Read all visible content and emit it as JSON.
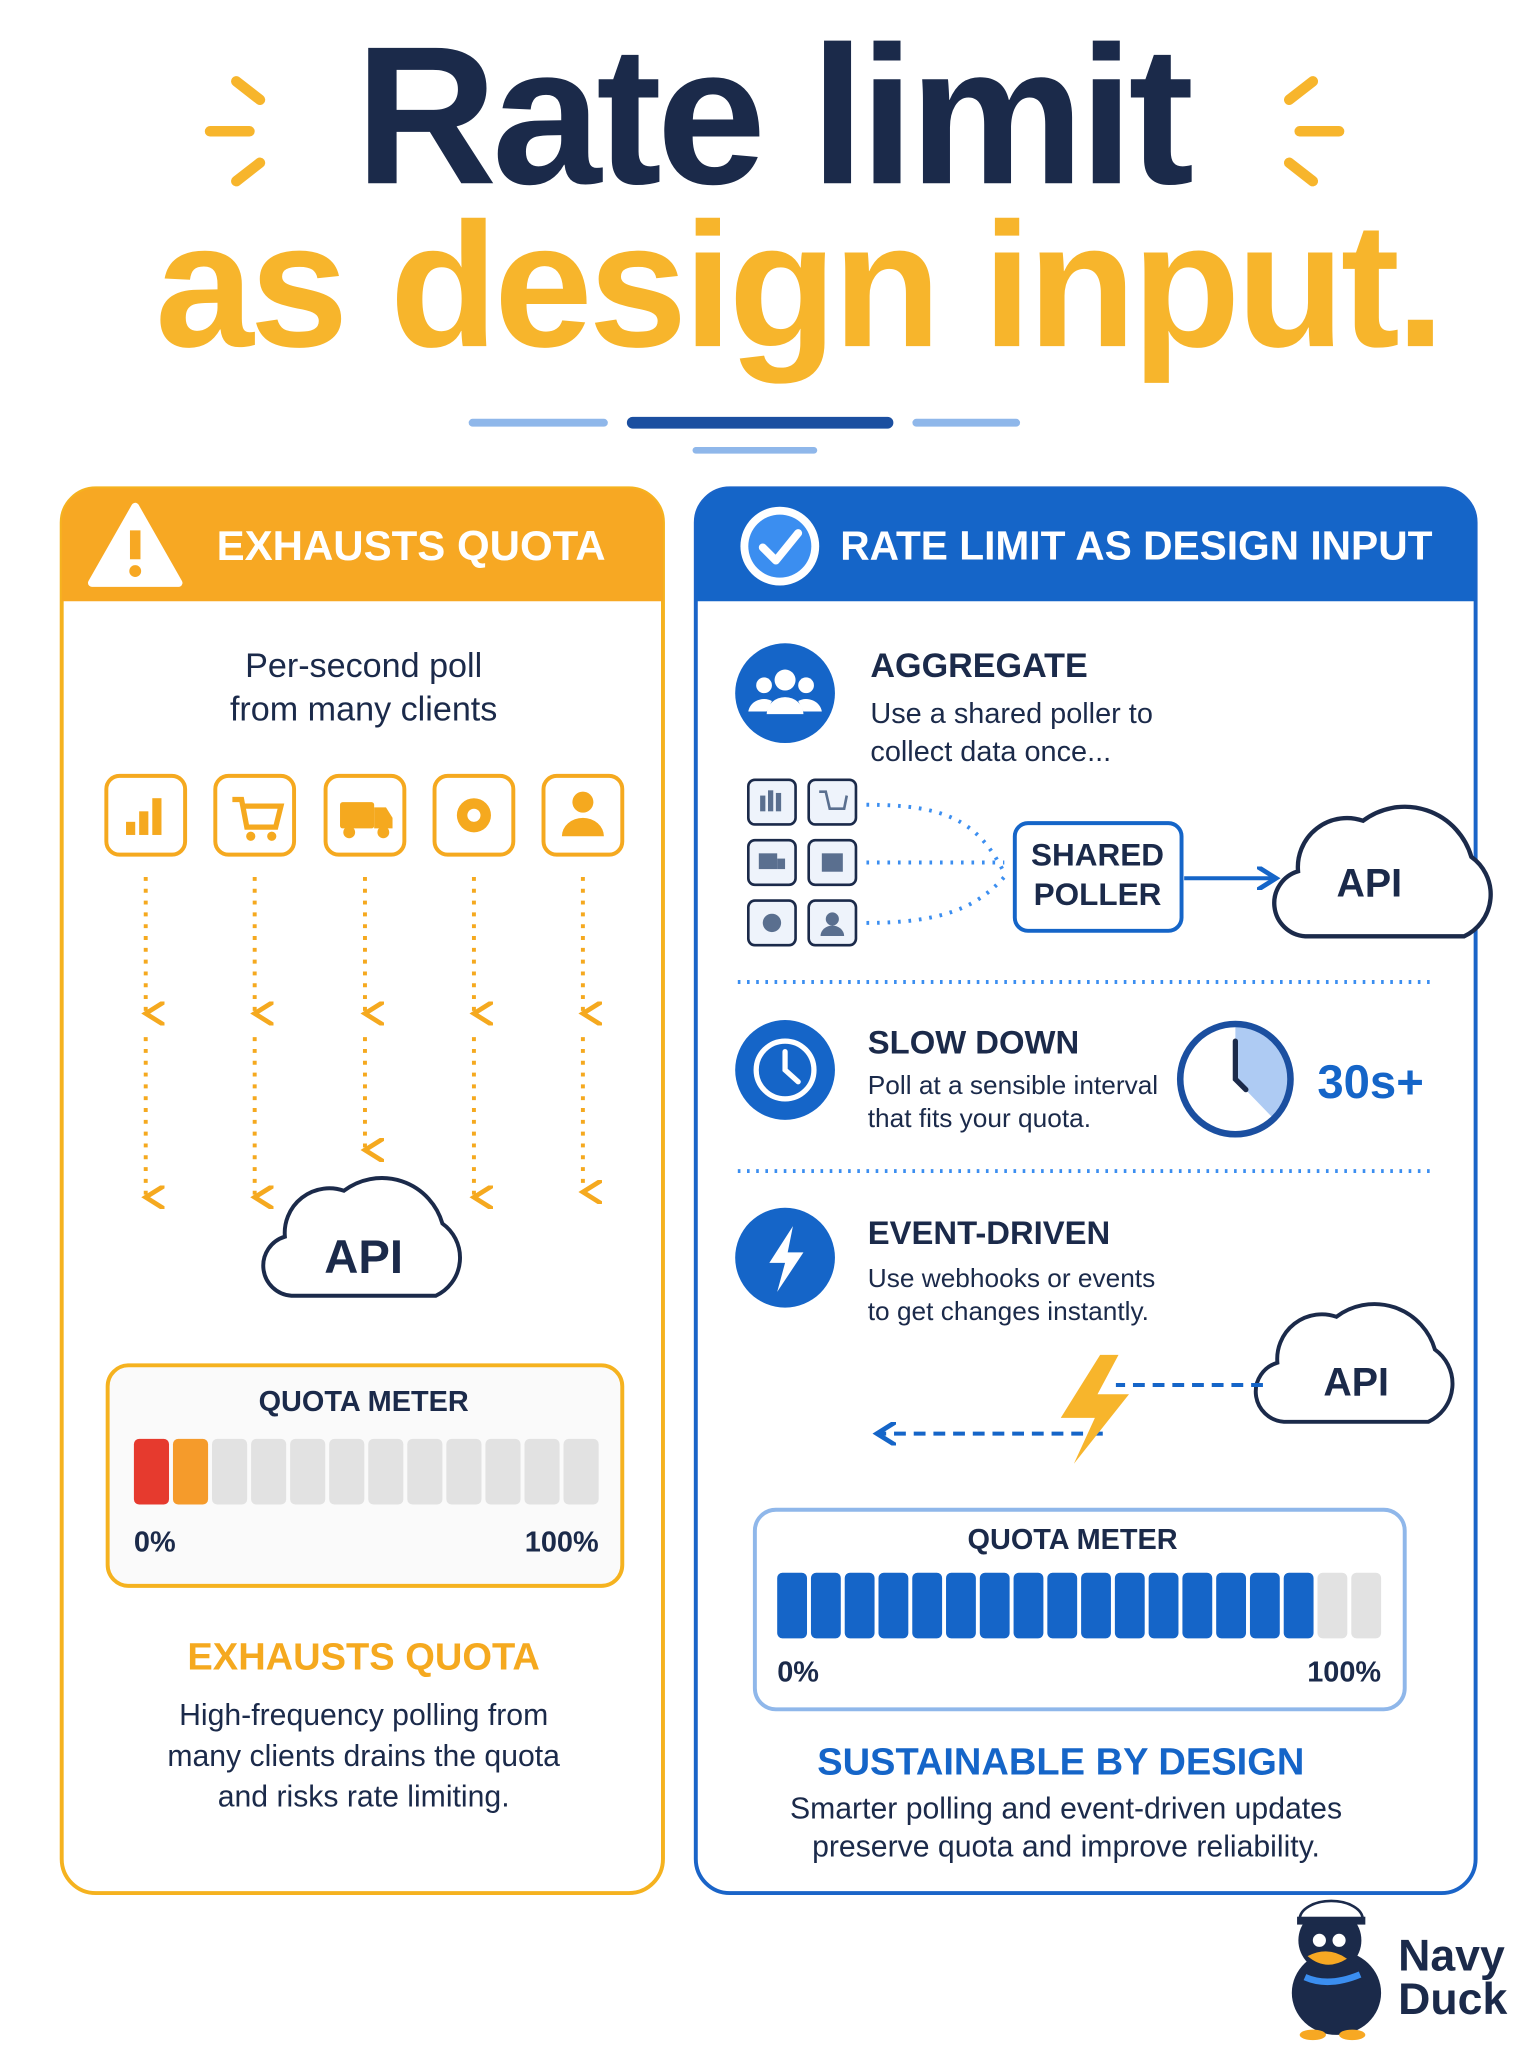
{
  "header": {
    "title_line1": "Rate limit",
    "title_line2": "as design input."
  },
  "left_panel": {
    "heading": "EXHAUSTS QUOTA",
    "intro": [
      "Per-second poll",
      "from many clients"
    ],
    "api_label": "API",
    "meter": {
      "title": "QUOTA METER",
      "min_label": "0%",
      "max_label": "100%",
      "segments": 12,
      "filled": 2,
      "fill_colors": [
        "#e63a2e",
        "#f59b2b"
      ],
      "empty_color": "#e2e2e2"
    },
    "summary_title": "EXHAUSTS QUOTA",
    "summary": [
      "High-frequency polling from",
      "many clients drains the quota",
      "and risks rate limiting."
    ]
  },
  "right_panel": {
    "heading": "RATE LIMIT AS DESIGN INPUT",
    "aggregate": {
      "title": "AGGREGATE",
      "text": [
        "Use a shared poller to",
        "collect data once..."
      ],
      "poller_label": [
        "SHARED",
        "POLLER"
      ],
      "api_label": "API"
    },
    "slow_down": {
      "title": "SLOW DOWN",
      "text": [
        "Poll at a sensible interval",
        "that fits your quota."
      ],
      "interval": "30s+"
    },
    "event_driven": {
      "title": "EVENT-DRIVEN",
      "text": [
        "Use webhooks or events",
        "to get changes instantly."
      ],
      "api_label": "API"
    },
    "meter": {
      "title": "QUOTA METER",
      "min_label": "0%",
      "max_label": "100%",
      "segments": 18,
      "filled": 16,
      "fill_color": "#1565c8",
      "empty_color": "#e2e2e2"
    },
    "summary_title": "SUSTAINABLE BY DESIGN",
    "summary": [
      "Smarter polling and event-driven updates",
      "preserve quota and improve reliability."
    ]
  },
  "brand": [
    "Navy",
    "Duck"
  ]
}
